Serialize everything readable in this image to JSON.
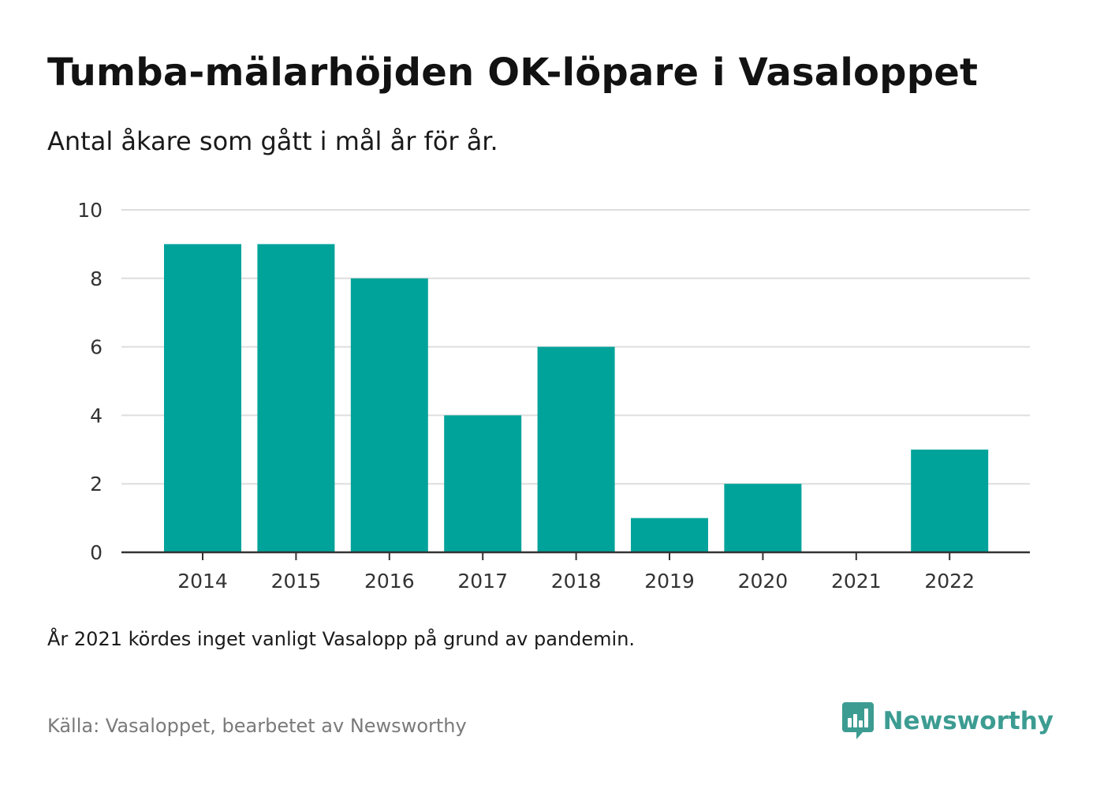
{
  "header": {
    "title": "Tumba-mälarhöjden OK-löpare i Vasaloppet",
    "subtitle": "Antal åkare som gått i mål år för år."
  },
  "footer": {
    "note": "År 2021 kördes inget vanligt Vasalopp på grund av pandemin.",
    "source": "Källa: Vasaloppet, bearbetet av Newsworthy",
    "brand": "Newsworthy",
    "brand_icon": "newsworthy-logo-icon"
  },
  "colors": {
    "bar": "#00a39a",
    "grid": "#dedede",
    "axis": "#333333",
    "brand": "#3c9c92"
  },
  "chart_data": {
    "type": "bar",
    "categories": [
      "2014",
      "2015",
      "2016",
      "2017",
      "2018",
      "2019",
      "2020",
      "2021",
      "2022"
    ],
    "values": [
      9,
      9,
      8,
      4,
      6,
      1,
      2,
      0,
      3
    ],
    "title": "Tumba-mälarhöjden OK-löpare i Vasaloppet",
    "subtitle": "Antal åkare som gått i mål år för år.",
    "xlabel": "",
    "ylabel": "",
    "ylim": [
      0,
      10
    ],
    "yticks": [
      0,
      2,
      4,
      6,
      8,
      10
    ],
    "grid": true,
    "legend": "none"
  }
}
